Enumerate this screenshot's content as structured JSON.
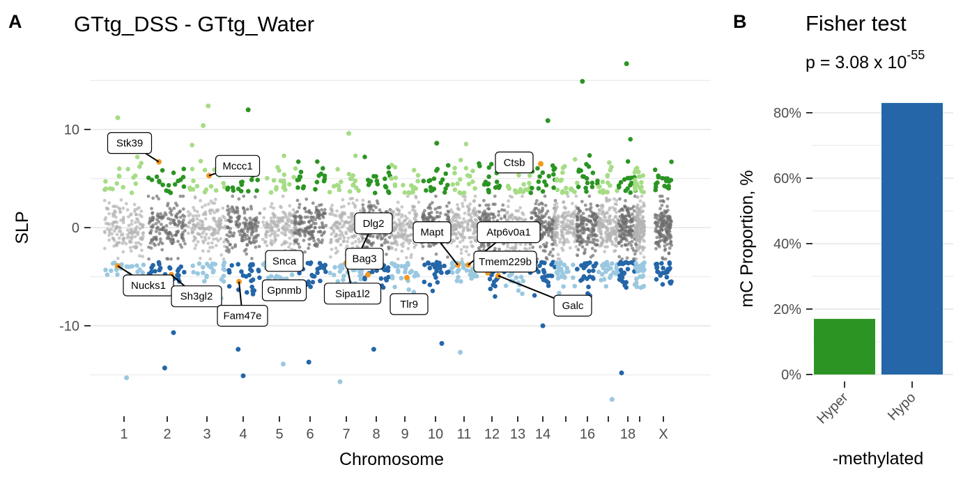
{
  "panels": {
    "a": {
      "tag": "A"
    },
    "b": {
      "tag": "B"
    }
  },
  "chart_data": [
    {
      "type": "scatter",
      "title": "GTtg_DSS - GTtg_Water",
      "xlabel": "Chromosome",
      "ylabel": "SLP",
      "ylim": [
        -16,
        16
      ],
      "yticks": [
        -10,
        0,
        10
      ],
      "grid": true,
      "legend": "none",
      "chromosomes": [
        "1",
        "2",
        "3",
        "4",
        "5",
        "6",
        "7",
        "8",
        "9",
        "10",
        "11",
        "12",
        "13",
        "14",
        "15",
        "16",
        "17",
        "18",
        "19",
        "X"
      ],
      "x_tick_labels": [
        "1",
        "2",
        "3",
        "4",
        "5",
        "6",
        "7",
        "8",
        "9",
        "10",
        "11",
        "12",
        "13",
        "14",
        "",
        "16",
        "",
        "18",
        "",
        "X"
      ],
      "colors": {
        "background_light": "#b3b3b3",
        "background_dark": "#6e6e6e",
        "hyper_light": "#a6dc86",
        "hyper_dark": "#2b9423",
        "hypo_light": "#9ac8e0",
        "hypo_dark": "#2466a8",
        "highlight": "#f39820"
      },
      "labeled_genes": [
        {
          "gene": "Stk39",
          "chr": "2",
          "slp": 6.7
        },
        {
          "gene": "Mccc1",
          "chr": "3",
          "slp": 5.3
        },
        {
          "gene": "Nucks1",
          "chr": "1",
          "slp": -3.9
        },
        {
          "gene": "Sh3gl2",
          "chr": "2",
          "slp": -4.8
        },
        {
          "gene": "Fam47e",
          "chr": "4",
          "slp": -5.5
        },
        {
          "gene": "Gpnmb",
          "chr": "5",
          "slp": -3.9
        },
        {
          "gene": "Snca",
          "chr": "5",
          "slp": -4.1
        },
        {
          "gene": "Dlg2",
          "chr": "7",
          "slp": -3.6
        },
        {
          "gene": "Sipa1l2",
          "chr": "7",
          "slp": -3.6
        },
        {
          "gene": "Bag3",
          "chr": "8",
          "slp": -4.8
        },
        {
          "gene": "Tlr9",
          "chr": "9",
          "slp": -5.1
        },
        {
          "gene": "Mapt",
          "chr": "11",
          "slp": -3.8
        },
        {
          "gene": "Atp6v0a1",
          "chr": "11",
          "slp": -3.8
        },
        {
          "gene": "Tmem229b",
          "chr": "12",
          "slp": -4.6
        },
        {
          "gene": "Galc",
          "chr": "12",
          "slp": -4.9
        },
        {
          "gene": "Ctsb",
          "chr": "14",
          "slp": 6.5
        }
      ],
      "extreme_points": [
        {
          "chr": "1",
          "slp": 11.2,
          "group": "hyper"
        },
        {
          "chr": "1",
          "slp": -15.3,
          "group": "hypo"
        },
        {
          "chr": "2",
          "slp": -14.3,
          "group": "hypo"
        },
        {
          "chr": "2",
          "slp": -10.7,
          "group": "hypo"
        },
        {
          "chr": "3",
          "slp": 12.4,
          "group": "hyper"
        },
        {
          "chr": "3",
          "slp": 10.4,
          "group": "hyper"
        },
        {
          "chr": "4",
          "slp": 12.0,
          "group": "hyper"
        },
        {
          "chr": "4",
          "slp": -15.1,
          "group": "hypo"
        },
        {
          "chr": "4",
          "slp": -12.4,
          "group": "hypo"
        },
        {
          "chr": "5",
          "slp": -13.9,
          "group": "hypo"
        },
        {
          "chr": "6",
          "slp": -13.7,
          "group": "hypo"
        },
        {
          "chr": "7",
          "slp": -15.7,
          "group": "hypo"
        },
        {
          "chr": "7",
          "slp": 9.6,
          "group": "hyper"
        },
        {
          "chr": "8",
          "slp": -12.4,
          "group": "hypo"
        },
        {
          "chr": "10",
          "slp": -11.8,
          "group": "hypo"
        },
        {
          "chr": "10",
          "slp": 8.6,
          "group": "hyper"
        },
        {
          "chr": "11",
          "slp": -12.7,
          "group": "hypo"
        },
        {
          "chr": "14",
          "slp": 10.9,
          "group": "hyper"
        },
        {
          "chr": "14",
          "slp": -10.0,
          "group": "hypo"
        },
        {
          "chr": "16",
          "slp": 14.9,
          "group": "hyper"
        },
        {
          "chr": "17",
          "slp": -17.5,
          "group": "hypo"
        },
        {
          "chr": "18",
          "slp": 16.7,
          "group": "hyper"
        },
        {
          "chr": "18",
          "slp": -14.8,
          "group": "hypo"
        }
      ]
    },
    {
      "type": "bar",
      "title": "Fisher test",
      "subtitle_prefix": "p = 3.08 x 10",
      "subtitle_exponent": "-55",
      "xlabel": "-methylated",
      "ylabel": "mC Proportion, %",
      "categories": [
        "Hyper",
        "Hypo"
      ],
      "values": [
        0.17,
        0.83
      ],
      "colors": [
        "#2b9423",
        "#2466a8"
      ],
      "ylim": [
        0,
        0.83
      ],
      "yticks": [
        "0%",
        "20%",
        "40%",
        "60%",
        "80%"
      ],
      "grid": true
    }
  ]
}
